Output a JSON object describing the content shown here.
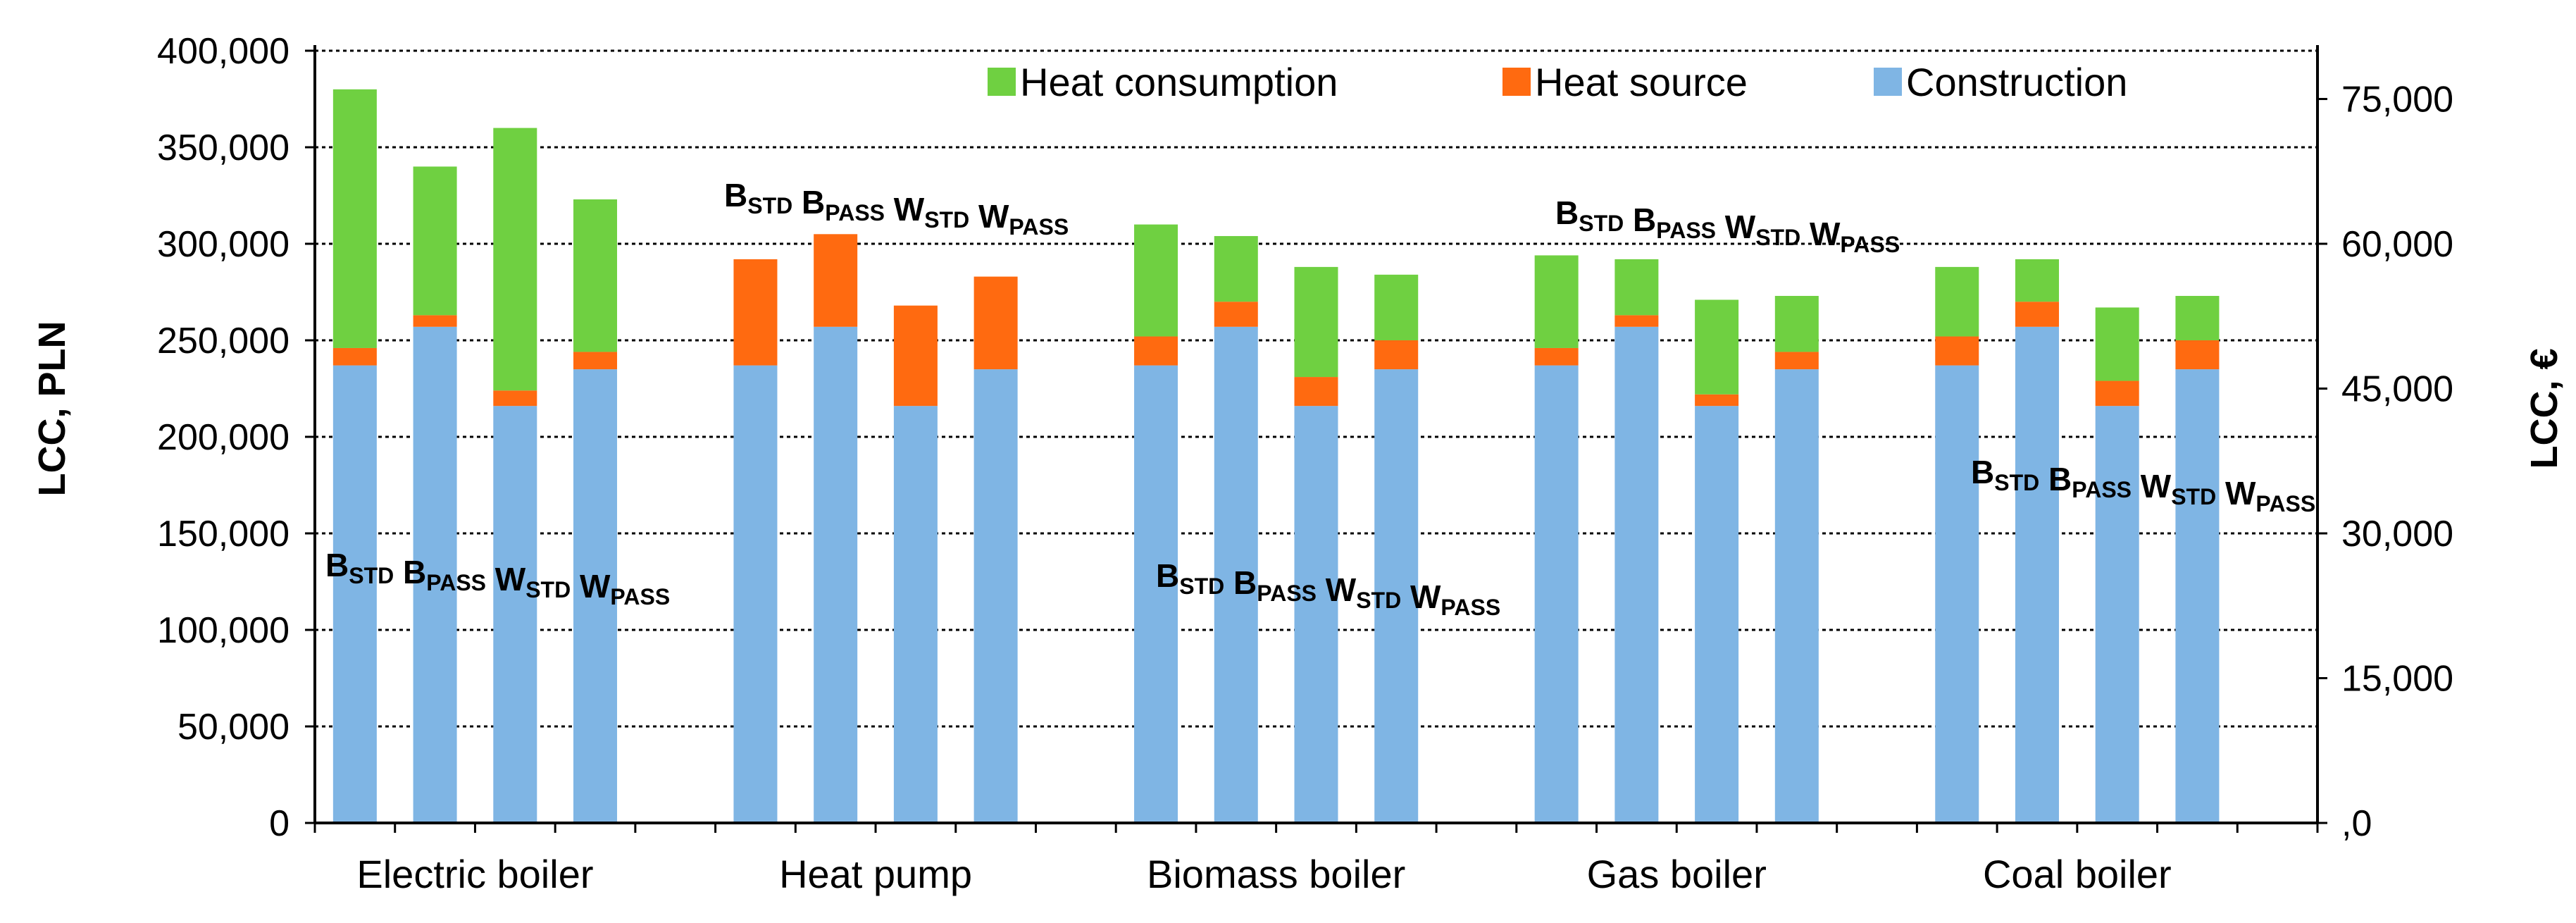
{
  "chart_data": {
    "type": "bar",
    "stacked": true,
    "title": "",
    "xlabel": "",
    "ylabel": "LCC, PLN",
    "y2label": "LCC, €",
    "ylim": [
      0,
      400000
    ],
    "y2lim": [
      0,
      80000
    ],
    "yticks": [
      "0",
      "50,000",
      "100,000",
      "150,000",
      "200,000",
      "250,000",
      "300,000",
      "350,000",
      "400,000"
    ],
    "y2ticks": [
      ",0",
      "15,000",
      "30,000",
      "45,000",
      "60,000",
      "75,000"
    ],
    "y2tick_values": [
      0,
      15000,
      30000,
      45000,
      60000,
      75000
    ],
    "grid": true,
    "legend_position": "top-right",
    "groups": [
      "Electric boiler",
      "Heat pump",
      "Biomass boiler",
      "Gas boiler",
      "Coal boiler"
    ],
    "bar_labels": [
      {
        "main": "B",
        "sub": "STD"
      },
      {
        "main": "B",
        "sub": "PASS"
      },
      {
        "main": "W",
        "sub": "STD"
      },
      {
        "main": "W",
        "sub": "PASS"
      }
    ],
    "series": [
      {
        "name": "Construction",
        "color": "#7fb5e4",
        "values": [
          [
            237000,
            257000,
            216000,
            235000
          ],
          [
            237000,
            257000,
            216000,
            235000
          ],
          [
            237000,
            257000,
            216000,
            235000
          ],
          [
            237000,
            257000,
            216000,
            235000
          ],
          [
            237000,
            257000,
            216000,
            235000
          ]
        ]
      },
      {
        "name": "Heat source",
        "color": "#ff6a10",
        "values": [
          [
            9000,
            6000,
            8000,
            9000
          ],
          [
            55000,
            48000,
            52000,
            48000
          ],
          [
            15000,
            13000,
            15000,
            15000
          ],
          [
            9000,
            6000,
            6000,
            9000
          ],
          [
            15000,
            13000,
            13000,
            15000
          ]
        ]
      },
      {
        "name": "Heat consumption",
        "color": "#6fd041",
        "values": [
          [
            134000,
            77000,
            136000,
            79000
          ],
          [
            0,
            0,
            0,
            0
          ],
          [
            58000,
            34000,
            57000,
            34000
          ],
          [
            48000,
            29000,
            49000,
            29000
          ],
          [
            36000,
            22000,
            38000,
            23000
          ]
        ]
      }
    ],
    "legend": [
      "Heat consumption",
      "Heat source",
      "Construction"
    ]
  }
}
